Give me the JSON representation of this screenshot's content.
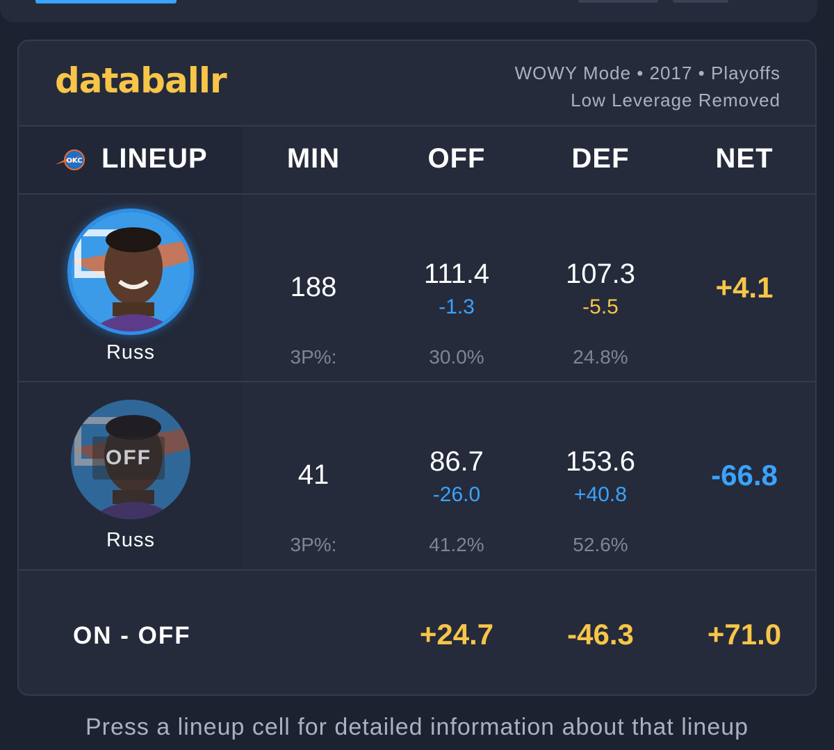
{
  "brand": {
    "logo_text": "databallr",
    "logo_color": "#f7c548"
  },
  "mode_info": {
    "line1": "WOWY Mode • 2017 • Playoffs",
    "line2": "Low Leverage Removed"
  },
  "table": {
    "headers": {
      "lineup": "LINEUP",
      "min": "MIN",
      "off": "OFF",
      "def": "DEF",
      "net": "NET"
    },
    "team_icon": "okc-thunder-logo-icon",
    "rows": [
      {
        "status": "on",
        "player_name": "Russ",
        "min": "188",
        "off": "111.4",
        "off_diff": "-1.3",
        "def": "107.3",
        "def_diff": "-5.5",
        "net": "+4.1",
        "three_p_label": "3P%:",
        "off_3p": "30.0%",
        "def_3p": "24.8%"
      },
      {
        "status": "off",
        "badge": "OFF",
        "player_name": "Russ",
        "min": "41",
        "off": "86.7",
        "off_diff": "-26.0",
        "def": "153.6",
        "def_diff": "+40.8",
        "net": "-66.8",
        "three_p_label": "3P%:",
        "off_3p": "41.2%",
        "def_3p": "52.6%"
      }
    ],
    "summary": {
      "label": "ON - OFF",
      "off": "+24.7",
      "def": "-46.3",
      "net": "+71.0"
    }
  },
  "footer_hint": "Press a lineup cell for detailed information about that lineup",
  "colors": {
    "positive_gold": "#f7c548",
    "negative_blue": "#3aa3ff",
    "background": "#1d2230",
    "card": "#252b3b"
  }
}
